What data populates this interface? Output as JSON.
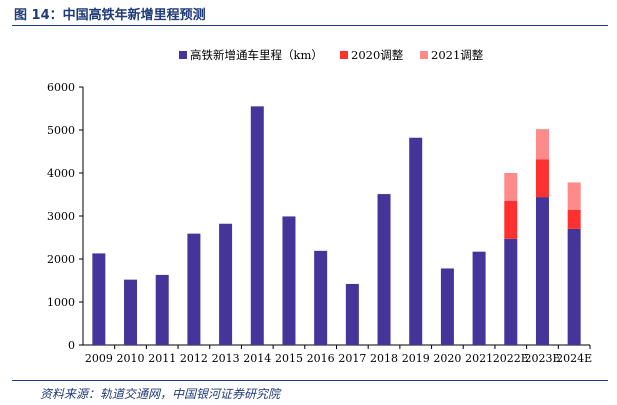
{
  "figure_title": "图 14：中国高铁年新增里程预测",
  "source_text": "资料来源：轨道交通网，中国银河证券研究院",
  "colors": {
    "base": "#45349a",
    "adj2020": "#ff3030",
    "adj2021": "#ff8a8a",
    "axis": "#000000",
    "title": "#1f3a78"
  },
  "chart_data": {
    "type": "bar",
    "stacked": true,
    "title": "中国高铁年新增里程预测",
    "xlabel": "",
    "ylabel": "",
    "ylim": [
      0,
      6000
    ],
    "yticks": [
      "0",
      "1000",
      "2000",
      "3000",
      "4000",
      "5000",
      "6000"
    ],
    "categories": [
      "2009",
      "2010",
      "2011",
      "2012",
      "2013",
      "2014",
      "2015",
      "2016",
      "2017",
      "2018",
      "2019",
      "2020",
      "2021",
      "2022E",
      "2023E",
      "2024E"
    ],
    "legend_position": "top-center",
    "series": [
      {
        "name": "高铁新增通车里程（km）",
        "values": [
          2130,
          1520,
          1630,
          2590,
          2820,
          5550,
          2990,
          2190,
          1420,
          3510,
          4820,
          1780,
          2170,
          2470,
          3440,
          2700
        ]
      },
      {
        "name": "2020调整",
        "values": [
          0,
          0,
          0,
          0,
          0,
          0,
          0,
          0,
          0,
          0,
          0,
          0,
          0,
          880,
          880,
          440
        ]
      },
      {
        "name": "2021调整",
        "values": [
          0,
          0,
          0,
          0,
          0,
          0,
          0,
          0,
          0,
          0,
          0,
          0,
          0,
          650,
          700,
          640
        ]
      }
    ]
  }
}
